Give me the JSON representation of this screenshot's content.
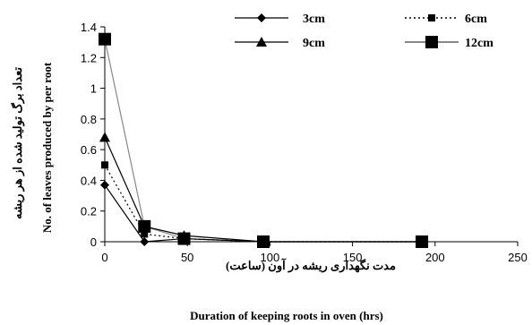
{
  "chart_data": {
    "type": "line",
    "x": [
      0,
      24,
      48,
      96,
      192
    ],
    "series": [
      {
        "name": "3cm",
        "values": [
          0.37,
          0.0,
          0.02,
          0.0,
          0.0
        ],
        "marker": "diamond",
        "line": "solid",
        "color": "#000000"
      },
      {
        "name": "6cm",
        "values": [
          0.5,
          0.05,
          0.02,
          0.0,
          0.0
        ],
        "marker": "square-small",
        "line": "dotted",
        "color": "#000000"
      },
      {
        "name": "9cm",
        "values": [
          0.68,
          0.1,
          0.04,
          0.0,
          0.0
        ],
        "marker": "triangle",
        "line": "solid",
        "color": "#000000"
      },
      {
        "name": "12cm",
        "values": [
          1.32,
          0.1,
          0.02,
          0.0,
          0.0
        ],
        "marker": "square-large",
        "line": "solid",
        "color": "#888888"
      }
    ],
    "xlim": [
      0,
      250
    ],
    "ylim": [
      0,
      1.4
    ],
    "xticks": [
      "0",
      "50",
      "100",
      "150",
      "200",
      "250"
    ],
    "yticks": [
      "0",
      "0.2",
      "0.4",
      "0.6",
      "0.8",
      "1",
      "1.2",
      "1.4"
    ],
    "xlabel_fa": "مدت نگهداری ریشه در آون (ساعت)",
    "xlabel_en": "Duration of keeping roots in oven (hrs)",
    "ylabel_fa": "تعداد برگ تولید شده از هر ریشه",
    "ylabel_en": "No. of leaves produced by per root",
    "legend_position": "top"
  }
}
